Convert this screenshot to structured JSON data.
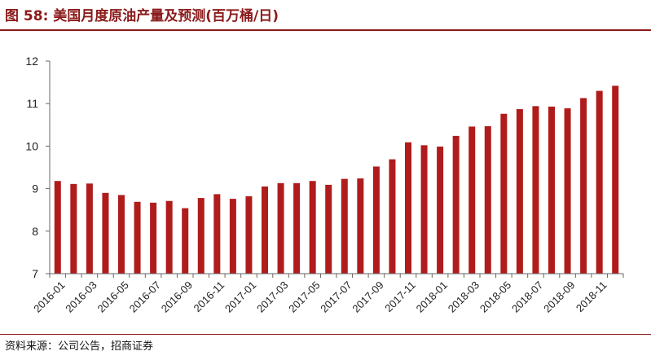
{
  "header": {
    "title": "图 58:  美国月度原油产量及预测(百万桶/日)"
  },
  "footer": {
    "source": "资料来源：公司公告，招商证券"
  },
  "colors": {
    "accent": "#8b1a1a",
    "bar": "#b01c1c",
    "axis": "#666666"
  },
  "chart_data": {
    "type": "bar",
    "title": "美国月度原油产量及预测(百万桶/日)",
    "xlabel": "",
    "ylabel": "",
    "ylim": [
      7,
      12
    ],
    "yticks": [
      7,
      8,
      9,
      10,
      11,
      12
    ],
    "grid": false,
    "categories": [
      "2016-01",
      "2016-02",
      "2016-03",
      "2016-04",
      "2016-05",
      "2016-06",
      "2016-07",
      "2016-08",
      "2016-09",
      "2016-10",
      "2016-11",
      "2016-12",
      "2017-01",
      "2017-02",
      "2017-03",
      "2017-04",
      "2017-05",
      "2017-06",
      "2017-07",
      "2017-08",
      "2017-09",
      "2017-10",
      "2017-11",
      "2017-12",
      "2018-01",
      "2018-02",
      "2018-03",
      "2018-04",
      "2018-05",
      "2018-06",
      "2018-07",
      "2018-08",
      "2018-09",
      "2018-10",
      "2018-11",
      "2018-12"
    ],
    "tick_labels": [
      "2016-01",
      "2016-03",
      "2016-05",
      "2016-07",
      "2016-09",
      "2016-11",
      "2017-01",
      "2017-03",
      "2017-05",
      "2017-07",
      "2017-09",
      "2017-11",
      "2018-01",
      "2018-03",
      "2018-05",
      "2018-07",
      "2018-09",
      "2018-11"
    ],
    "values": [
      9.18,
      9.11,
      9.12,
      8.9,
      8.85,
      8.69,
      8.67,
      8.71,
      8.54,
      8.78,
      8.87,
      8.76,
      8.82,
      9.05,
      9.13,
      9.13,
      9.18,
      9.09,
      9.23,
      9.24,
      9.52,
      9.69,
      10.09,
      10.02,
      9.99,
      10.24,
      10.46,
      10.47,
      10.76,
      10.87,
      10.94,
      10.93,
      10.89,
      11.13,
      11.3,
      11.42
    ]
  }
}
